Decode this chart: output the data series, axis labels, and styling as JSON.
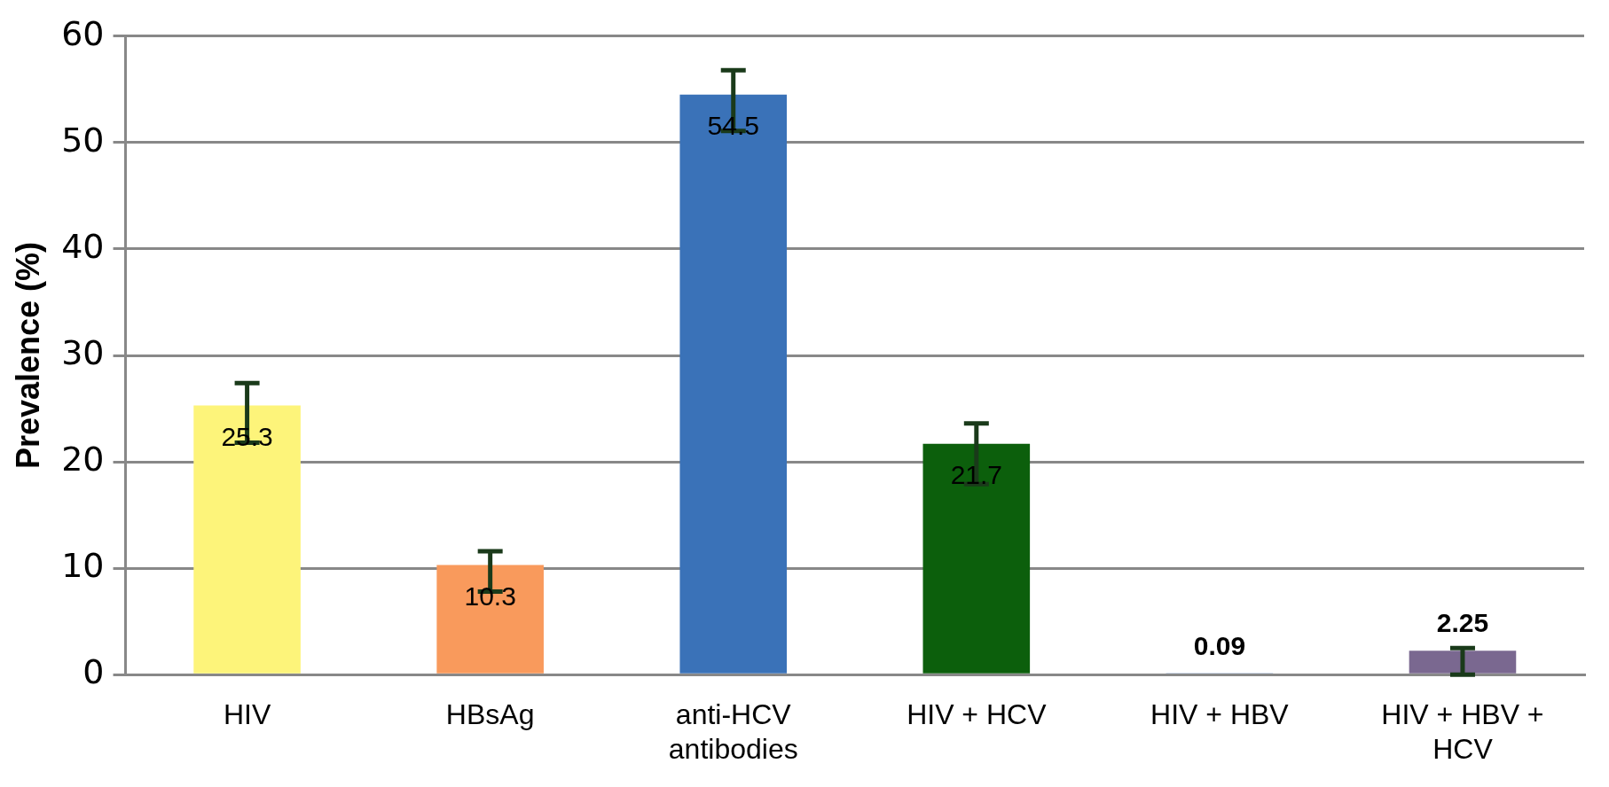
{
  "chart_data": {
    "type": "bar",
    "ylabel": "Prevalence (%)",
    "categories": [
      "HIV",
      "HBsAg",
      "anti-HCV antibodies",
      "HIV + HCV",
      "HIV + HBV",
      "HIV + HBV + HCV"
    ],
    "values": [
      25.3,
      10.3,
      54.5,
      21.7,
      0.09,
      2.25
    ],
    "colors": [
      "#fdf47a",
      "#f99a5c",
      "#3a72b8",
      "#0c5f0c",
      "#4a7ab8",
      "#7a6890"
    ],
    "errors": [
      [
        21.8,
        27.4
      ],
      [
        7.8,
        11.6
      ],
      [
        51.1,
        56.8
      ],
      [
        17.9,
        23.6
      ],
      null,
      [
        0,
        2.5
      ]
    ],
    "ylim": [
      0,
      60
    ],
    "yticks": [
      0,
      10,
      20,
      30,
      40,
      50,
      60
    ],
    "grid": "y",
    "data_labels": true
  }
}
